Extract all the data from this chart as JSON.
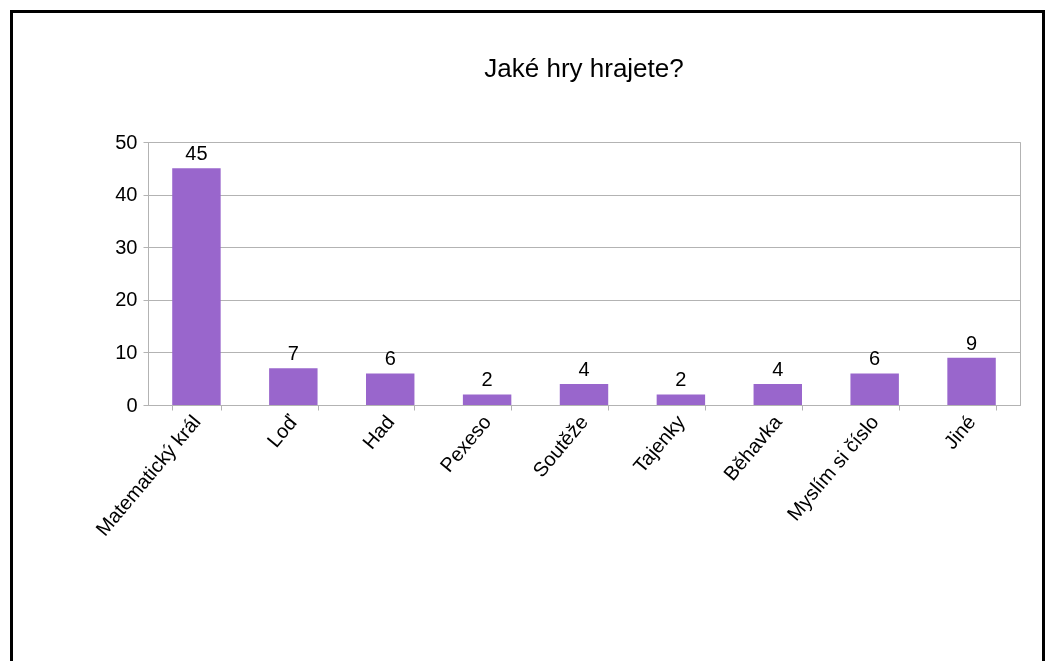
{
  "chart_data": {
    "type": "bar",
    "title": "Jaké hry hrajete?",
    "categories": [
      "Matematický král",
      "Loď",
      "Had",
      "Pexeso",
      "Soutěže",
      "Tajenky",
      "Běhavka",
      "Myslím si číslo",
      "Jiné"
    ],
    "values": [
      45,
      7,
      6,
      2,
      4,
      2,
      4,
      6,
      9
    ],
    "color": "#9966cc",
    "ylim": [
      0,
      50
    ],
    "yticks": [
      0,
      10,
      20,
      30,
      40,
      50
    ],
    "grid": "y",
    "data_labels": true
  }
}
